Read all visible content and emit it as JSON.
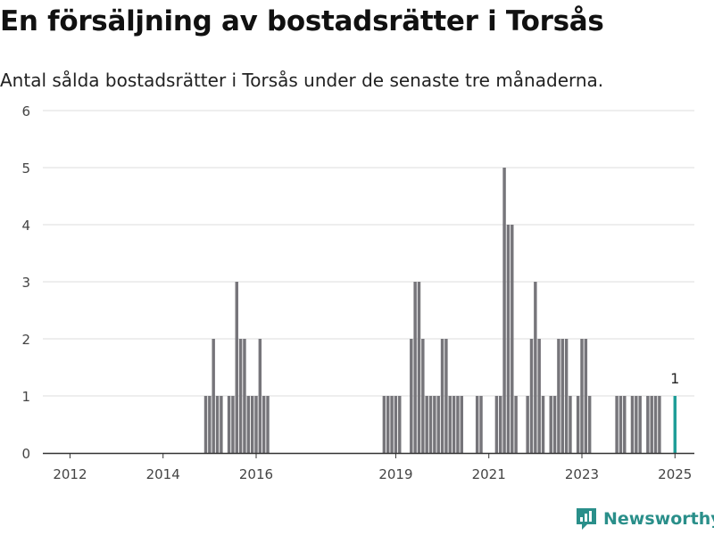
{
  "title": "En försäljning av bostadsrätter i Torsås",
  "subtitle": "Antal sålda bostadsrätter i Torsås under de senaste tre månaderna.",
  "brand": {
    "name": "Newsworthy"
  },
  "colors": {
    "bar": "#76757a",
    "highlight": "#1f9e98",
    "grid": "#dddddd",
    "axis": "#333333",
    "brand": "#2a8f8a"
  },
  "chart_data": {
    "type": "bar",
    "title": "En försäljning av bostadsrätter i Torsås",
    "subtitle": "Antal sålda bostadsrätter i Torsås under de senaste tre månaderna.",
    "xlabel": "",
    "ylabel": "",
    "ylim": [
      0,
      6
    ],
    "xlim": [
      "2011-06",
      "2025-06"
    ],
    "y_ticks": [
      "0",
      "1",
      "2",
      "3",
      "4",
      "5",
      "6"
    ],
    "x_ticks": [
      "2012",
      "2014",
      "2016",
      "2019",
      "2021",
      "2023",
      "2025"
    ],
    "grid": true,
    "annotation": {
      "x": "2025-01",
      "value": 1,
      "text": "1"
    },
    "series": [
      {
        "name": "",
        "x": [
          "2014-12",
          "2015-01",
          "2015-02",
          "2015-03",
          "2015-04",
          "2015-06",
          "2015-07",
          "2015-08",
          "2015-09",
          "2015-10",
          "2015-11",
          "2015-12",
          "2016-01",
          "2016-02",
          "2016-03",
          "2016-04",
          "2018-10",
          "2018-11",
          "2018-12",
          "2019-01",
          "2019-02",
          "2019-05",
          "2019-06",
          "2019-07",
          "2019-08",
          "2019-09",
          "2019-10",
          "2019-11",
          "2019-12",
          "2020-01",
          "2020-02",
          "2020-03",
          "2020-04",
          "2020-05",
          "2020-06",
          "2020-10",
          "2020-11",
          "2021-03",
          "2021-04",
          "2021-05",
          "2021-06",
          "2021-07",
          "2021-08",
          "2021-11",
          "2021-12",
          "2022-01",
          "2022-02",
          "2022-03",
          "2022-05",
          "2022-06",
          "2022-07",
          "2022-08",
          "2022-09",
          "2022-10",
          "2022-12",
          "2023-01",
          "2023-02",
          "2023-03",
          "2023-10",
          "2023-11",
          "2023-12",
          "2024-02",
          "2024-03",
          "2024-04",
          "2024-06",
          "2024-07",
          "2024-08",
          "2024-09"
        ],
        "values": [
          1,
          1,
          2,
          1,
          1,
          1,
          1,
          3,
          2,
          2,
          1,
          1,
          1,
          2,
          1,
          1,
          1,
          1,
          1,
          1,
          1,
          2,
          3,
          3,
          2,
          1,
          1,
          1,
          1,
          2,
          2,
          1,
          1,
          1,
          1,
          1,
          1,
          1,
          1,
          5,
          4,
          4,
          1,
          1,
          2,
          3,
          2,
          1,
          1,
          1,
          2,
          2,
          2,
          1,
          1,
          2,
          2,
          1,
          1,
          1,
          1,
          1,
          1,
          1,
          1,
          1,
          1,
          1
        ]
      },
      {
        "name": "",
        "highlight": true,
        "x": [
          "2025-01"
        ],
        "values": [
          1
        ]
      }
    ]
  }
}
